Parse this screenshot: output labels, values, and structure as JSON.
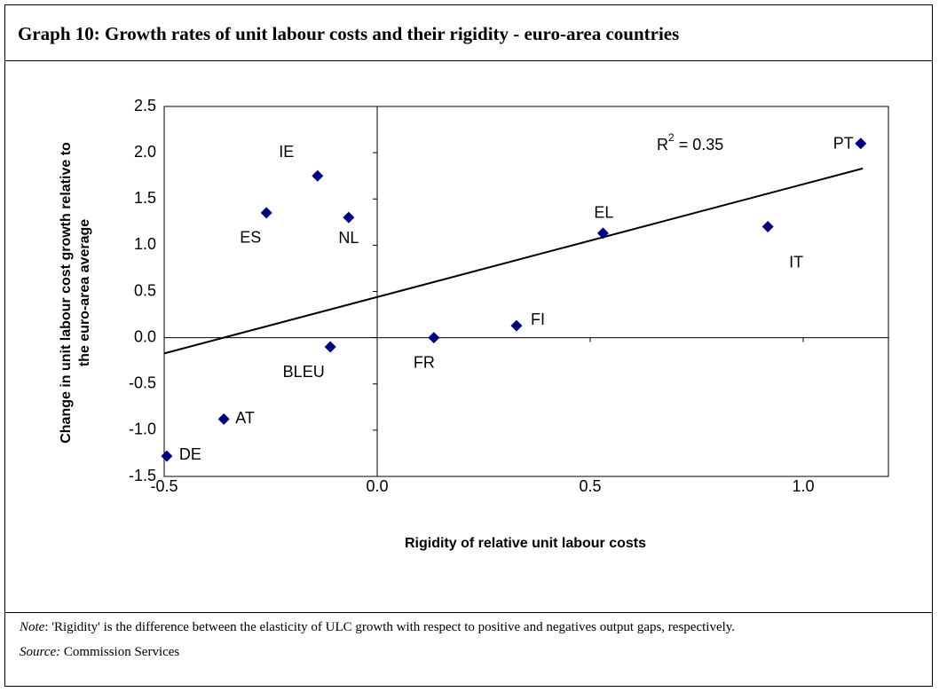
{
  "chart_data": {
    "type": "scatter",
    "title": "Graph 10: Growth rates of unit labour costs and their rigidity - euro-area countries",
    "xlabel": "Rigidity of relative unit labour costs",
    "ylabel_lines": [
      "Change in unit labour cost growth relative to",
      "the euro-area average"
    ],
    "labels": [
      "PT",
      "IE",
      "ES",
      "NL",
      "EL",
      "IT",
      "FI",
      "FR",
      "BLEU",
      "AT",
      "DE"
    ],
    "x": [
      1.135,
      -0.14,
      -0.26,
      -0.067,
      0.53,
      0.917,
      0.327,
      0.133,
      -0.11,
      -0.36,
      -0.494
    ],
    "y": [
      2.1,
      1.75,
      1.35,
      1.3,
      1.13,
      1.2,
      0.13,
      0.0,
      -0.1,
      -0.88,
      -1.28
    ],
    "color": "#000080",
    "trendline": {
      "x": [
        -0.5,
        1.14
      ],
      "y": [
        -0.17,
        1.83
      ]
    },
    "annotation": {
      "base": "R",
      "superscript": "2",
      "rest": " = 0.35"
    },
    "xlim": [
      -0.5,
      1.2
    ],
    "ylim": [
      -1.5,
      2.5
    ],
    "xticks": [
      -0.5,
      {
        "value": 0,
        "label": "0.0"
      },
      0.5,
      {
        "value": 1,
        "label": "1.0"
      }
    ],
    "yticks": [
      -1.5,
      {
        "value": -1,
        "label": "-1.0"
      },
      -0.5,
      {
        "value": 0,
        "label": "0.0"
      },
      0.5,
      {
        "value": 1,
        "label": "1.0"
      },
      1.5,
      {
        "value": 2,
        "label": "2.0"
      },
      2.5
    ],
    "note": {
      "label": "Note",
      "text": ":  'Rigidity' is the difference between the elasticity of ULC growth with respect to positive and negatives output gaps, respectively."
    },
    "source": {
      "label": "Source:",
      "text": " Commission Services"
    }
  }
}
